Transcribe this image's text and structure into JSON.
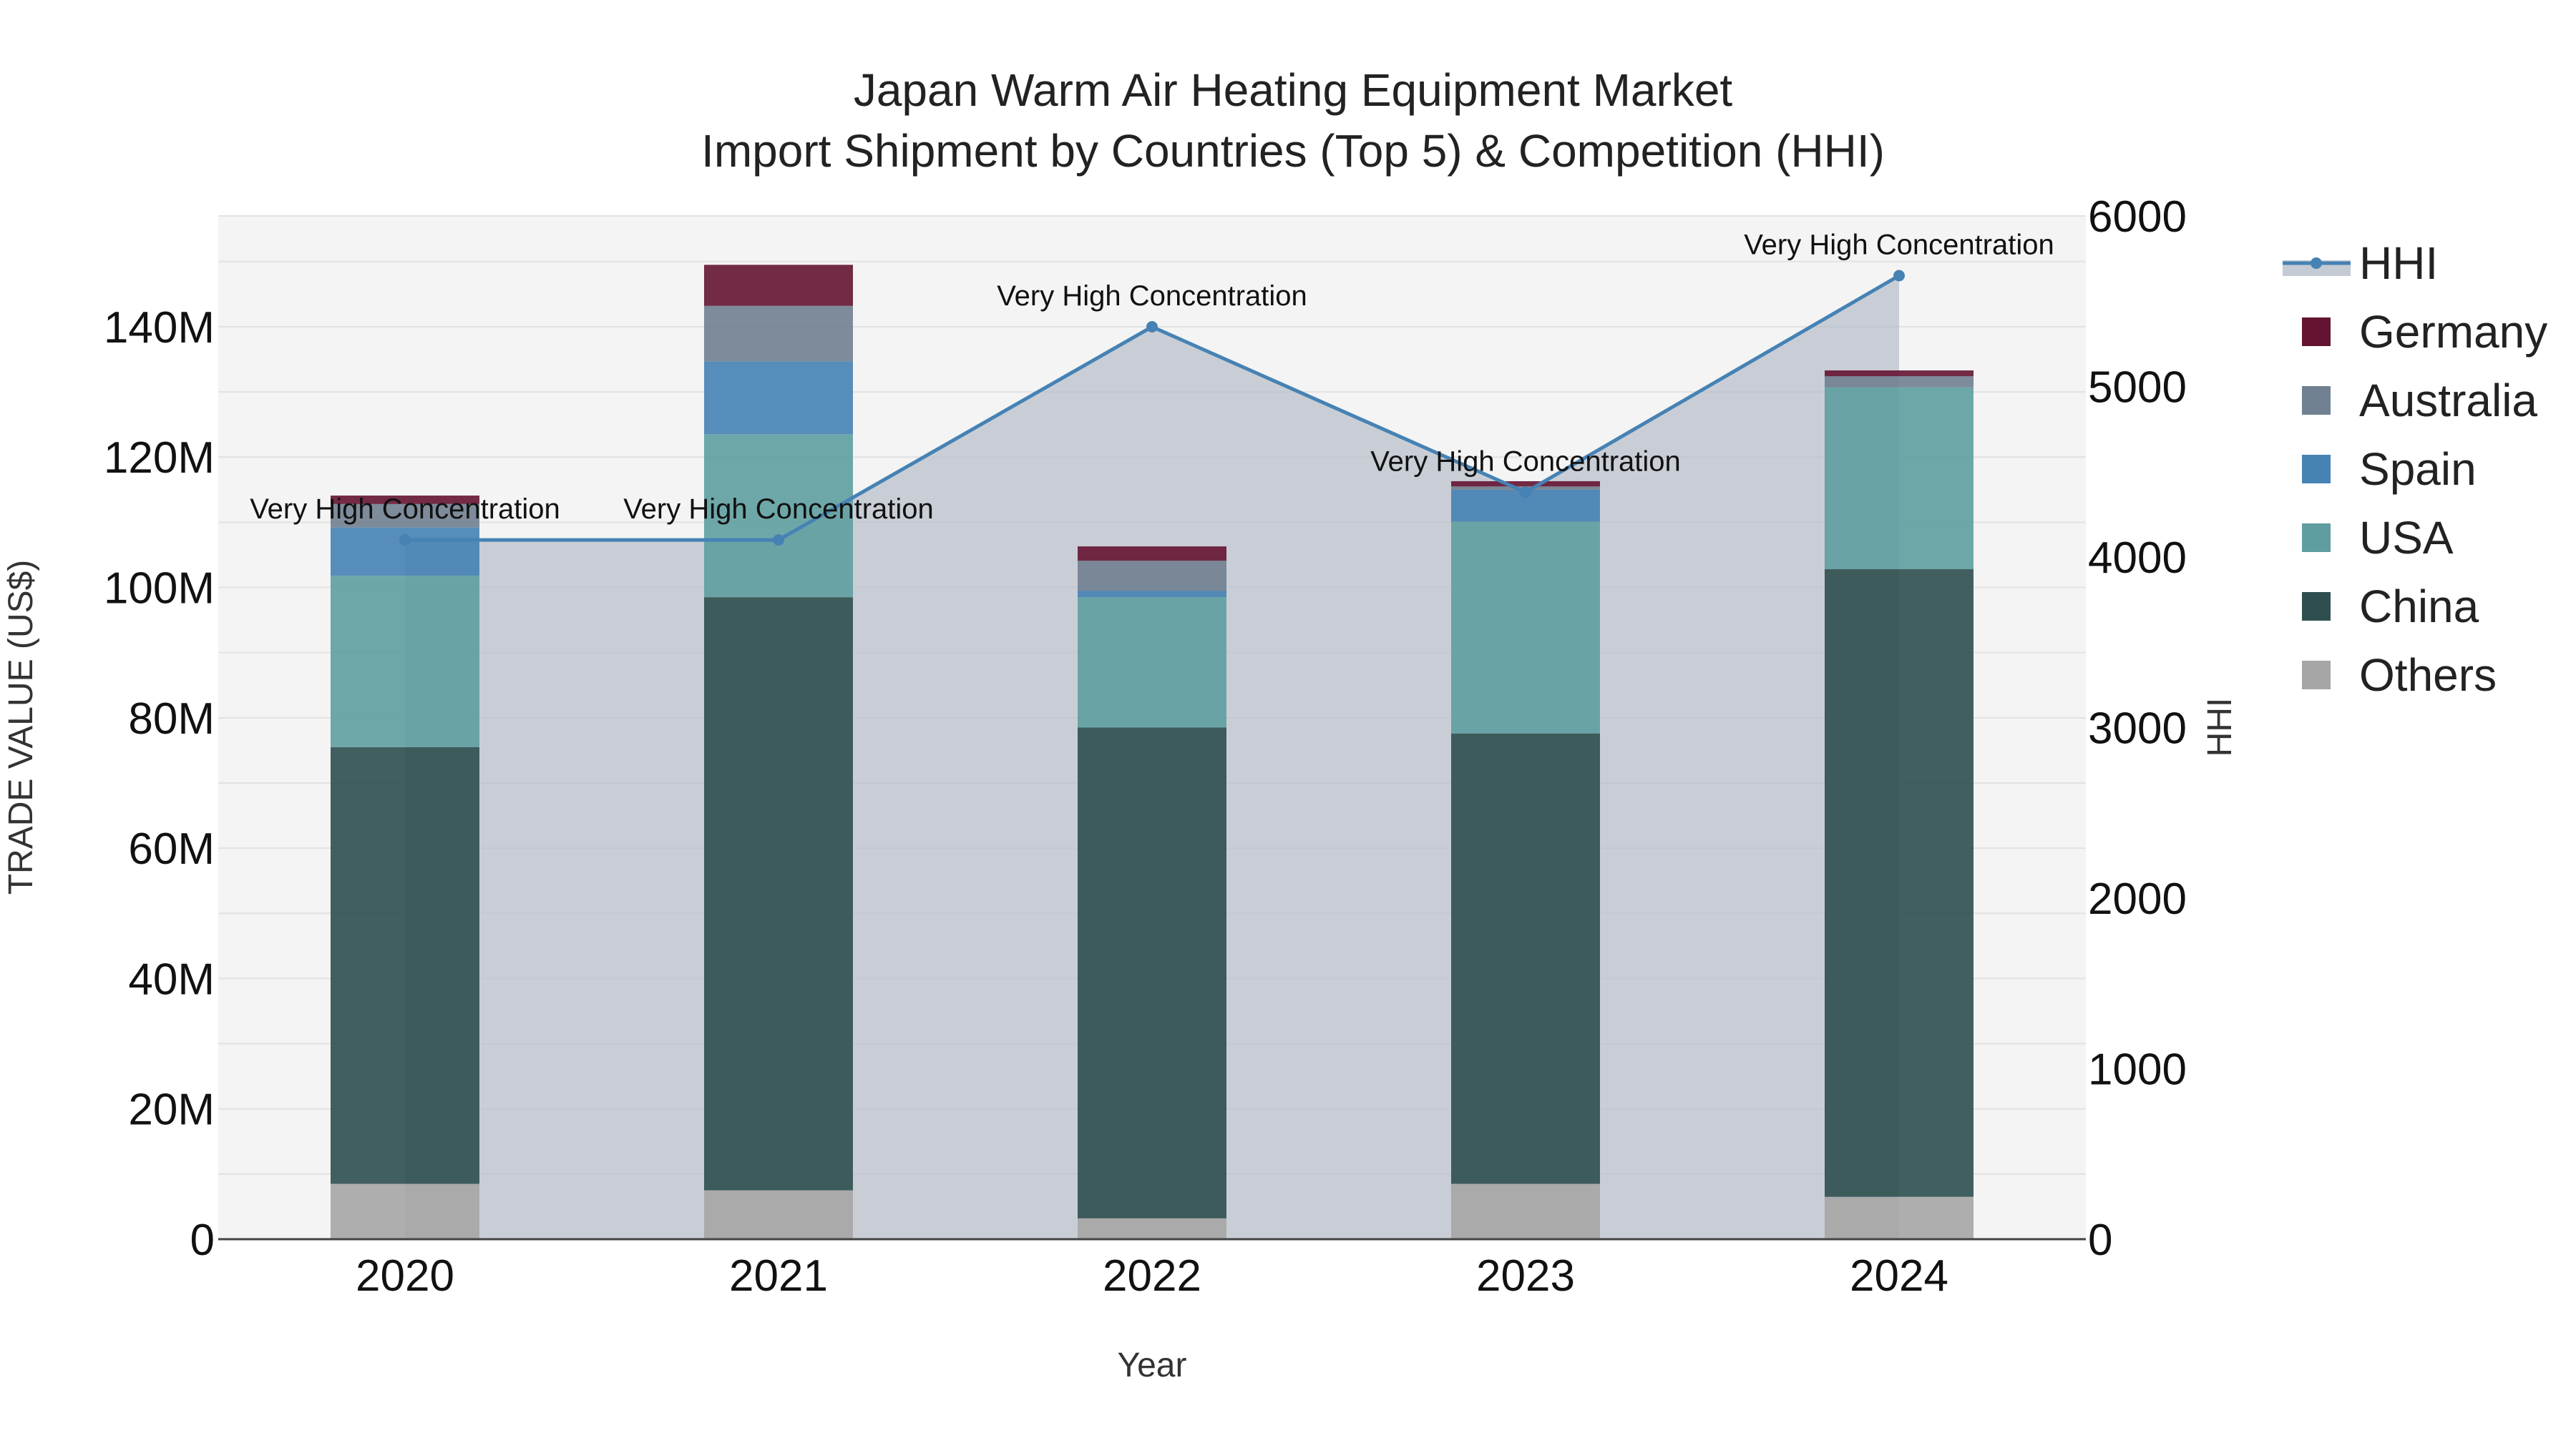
{
  "chart_data": {
    "type": "bar",
    "title": "Japan Warm Air Heating Equipment Market",
    "subtitle": "Import Shipment by Countries (Top 5) & Competition (HHI)",
    "xlabel": "Year",
    "ylabel": "TRADE VALUE (US$)",
    "y2label": "HHI",
    "categories": [
      "2020",
      "2021",
      "2022",
      "2023",
      "2024"
    ],
    "ylim": [
      0,
      157000000
    ],
    "y2lim": [
      0,
      6000
    ],
    "y_ticks": [
      {
        "value": 0,
        "label": "0"
      },
      {
        "value": 20000000,
        "label": "20M"
      },
      {
        "value": 40000000,
        "label": "40M"
      },
      {
        "value": 60000000,
        "label": "60M"
      },
      {
        "value": 80000000,
        "label": "80M"
      },
      {
        "value": 100000000,
        "label": "100M"
      },
      {
        "value": 120000000,
        "label": "120M"
      },
      {
        "value": 140000000,
        "label": "140M"
      }
    ],
    "y2_ticks": [
      {
        "value": 0,
        "label": "0"
      },
      {
        "value": 1000,
        "label": "1000"
      },
      {
        "value": 2000,
        "label": "2000"
      },
      {
        "value": 3000,
        "label": "3000"
      },
      {
        "value": 4000,
        "label": "4000"
      },
      {
        "value": 5000,
        "label": "5000"
      },
      {
        "value": 6000,
        "label": "6000"
      }
    ],
    "series": [
      {
        "name": "Others",
        "color": "#a6a6a6",
        "values": [
          8500000,
          7500000,
          3200000,
          8500000,
          6500000
        ]
      },
      {
        "name": "China",
        "color": "#2f4f4f",
        "values": [
          67000000,
          91000000,
          75300000,
          69100000,
          96300000
        ]
      },
      {
        "name": "USA",
        "color": "#5f9ea0",
        "values": [
          26300000,
          25000000,
          20000000,
          32500000,
          27900000
        ]
      },
      {
        "name": "Spain",
        "color": "#4682b4",
        "values": [
          7400000,
          11200000,
          1000000,
          4900000,
          0
        ]
      },
      {
        "name": "Australia",
        "color": "#708090",
        "values": [
          3600000,
          8500000,
          4600000,
          500000,
          1700000
        ]
      },
      {
        "name": "Germany",
        "color": "#641432",
        "values": [
          1300000,
          6300000,
          2200000,
          800000,
          900000
        ]
      }
    ],
    "hhi": {
      "name": "HHI",
      "color": "#4682b4",
      "values": [
        4100,
        4100,
        5350,
        4380,
        5650
      ],
      "annotations": [
        "Very High Concentration",
        "Very High Concentration",
        "Very High Concentration",
        "Very High Concentration",
        "Very High Concentration"
      ]
    },
    "legend": [
      "HHI",
      "Germany",
      "Australia",
      "Spain",
      "USA",
      "China",
      "Others"
    ]
  }
}
